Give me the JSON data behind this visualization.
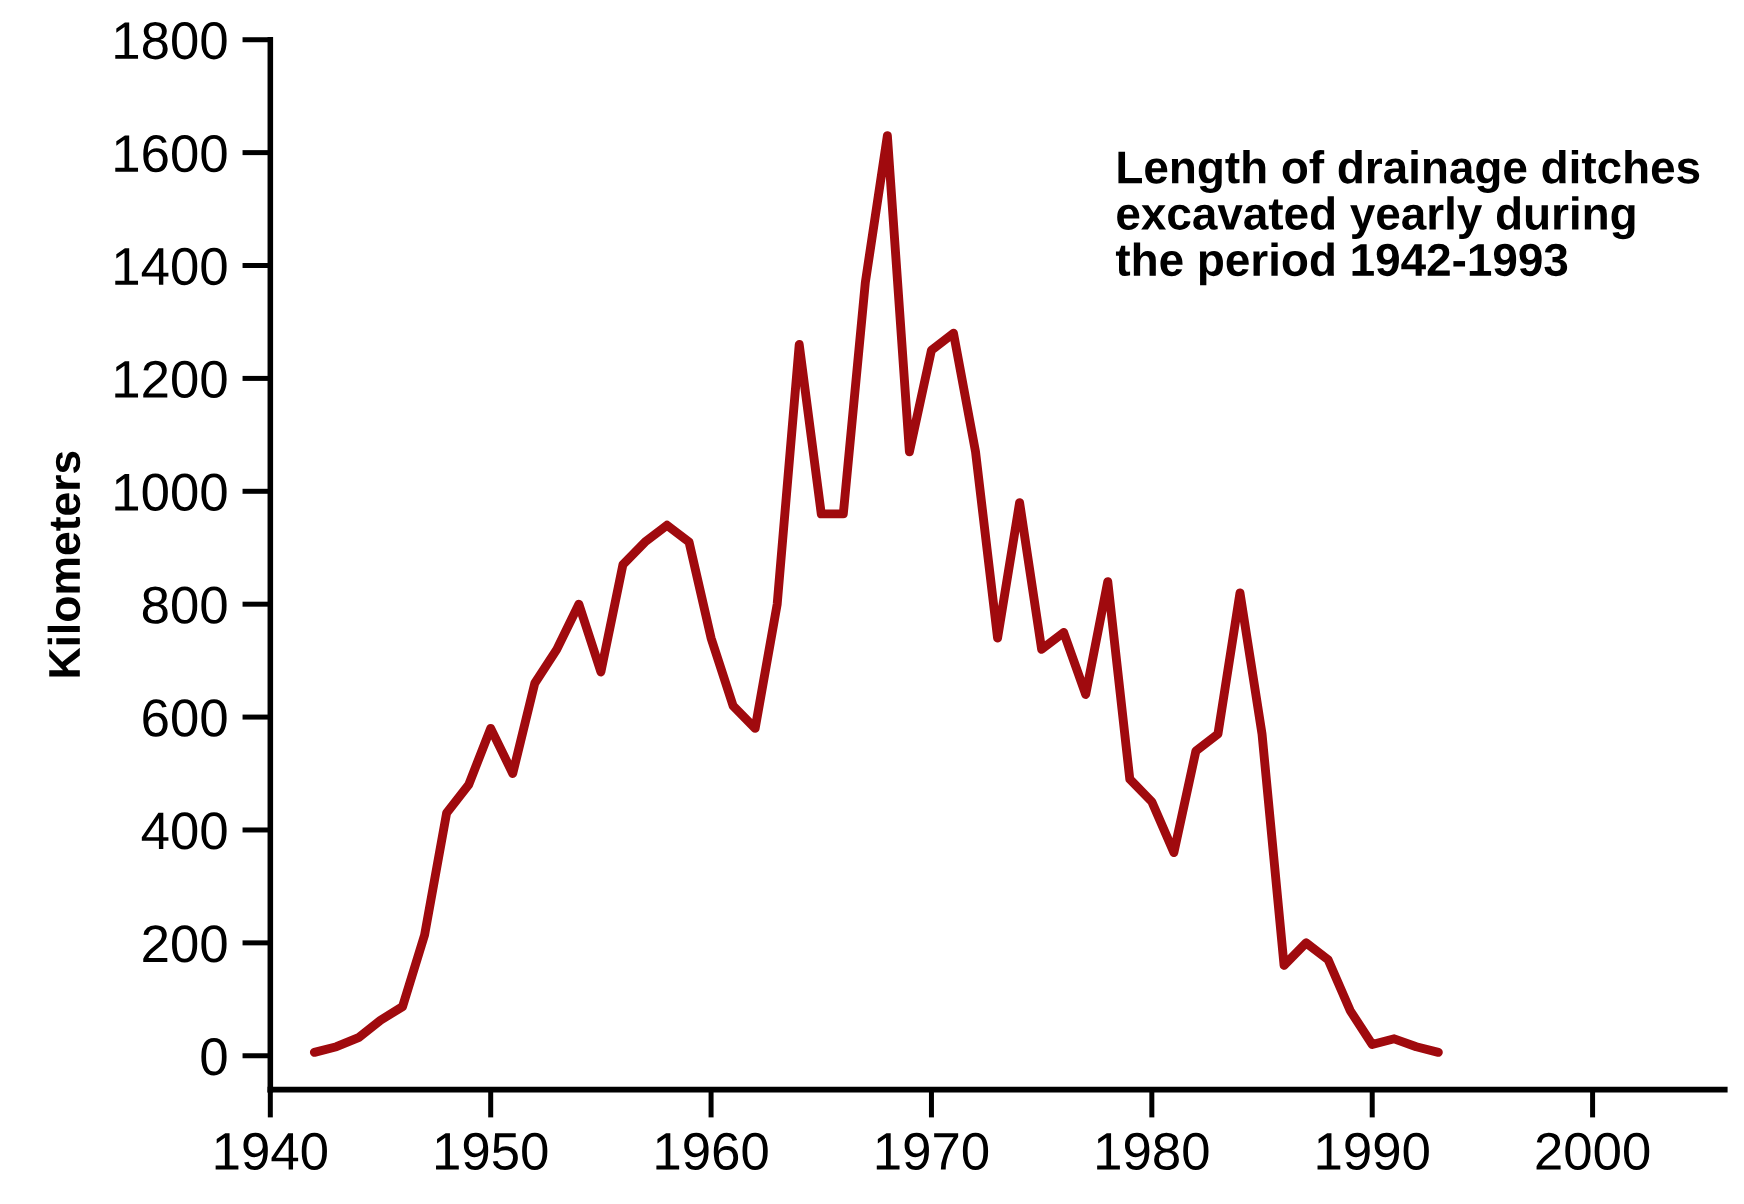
{
  "chart_data": {
    "type": "line",
    "title": "Length of drainage ditches\nexcavated yearly during\nthe period 1942-1993",
    "ylabel": "Kilometers",
    "x": [
      1942,
      1943,
      1944,
      1945,
      1946,
      1947,
      1948,
      1949,
      1950,
      1951,
      1952,
      1953,
      1954,
      1955,
      1956,
      1957,
      1958,
      1959,
      1960,
      1961,
      1962,
      1963,
      1964,
      1965,
      1966,
      1967,
      1968,
      1969,
      1970,
      1971,
      1972,
      1973,
      1974,
      1975,
      1976,
      1977,
      1978,
      1979,
      1980,
      1981,
      1982,
      1983,
      1984,
      1985,
      1986,
      1987,
      1988,
      1989,
      1990,
      1991,
      1992,
      1993
    ],
    "series": [
      {
        "color": "#a00a0e",
        "values": [
          6,
          16,
          32,
          63,
          87,
          214,
          430,
          480,
          580,
          500,
          660,
          720,
          800,
          680,
          870,
          910,
          940,
          910,
          740,
          620,
          580,
          800,
          1260,
          960,
          960,
          1370,
          1630,
          1070,
          1250,
          1280,
          1070,
          740,
          980,
          720,
          750,
          640,
          840,
          490,
          450,
          360,
          540,
          570,
          820,
          570,
          160,
          200,
          170,
          80,
          20,
          30,
          16,
          6
        ]
      }
    ],
    "xlim": [
      1940,
      2006
    ],
    "ylim": [
      -60,
      1800
    ],
    "xticks": [
      1940,
      1950,
      1960,
      1970,
      1980,
      1990,
      2000
    ],
    "yticks": [
      0,
      200,
      400,
      600,
      800,
      1000,
      1200,
      1400,
      1600,
      1800
    ],
    "grid": false,
    "marker": "none",
    "line_style": "solid"
  }
}
